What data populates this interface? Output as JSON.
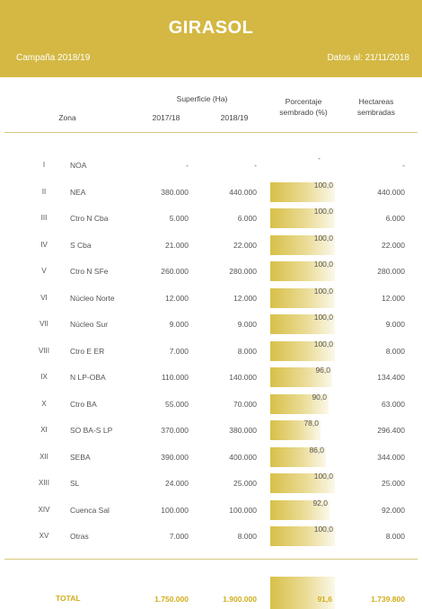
{
  "header": {
    "title": "GIRASOL",
    "campaign": "Campaña 2018/19",
    "date": "Datos al: 21/11/2018"
  },
  "columns": {
    "zona": "Zona",
    "superficie": "Superficie (Ha)",
    "y1": "2017/18",
    "y2": "2018/19",
    "pct_line1": "Porcentaje",
    "pct_line2": "sembrado (%)",
    "hec_line1": "Hectareas",
    "hec_line2": "sembradas"
  },
  "rows": [
    {
      "num": "I",
      "zona": "NOA",
      "s1": "-",
      "s2": "-",
      "pct": "-",
      "pct_value": 0,
      "hec": "-"
    },
    {
      "num": "II",
      "zona": "NEA",
      "s1": "380.000",
      "s2": "440.000",
      "pct": "100,0",
      "pct_value": 100,
      "hec": "440.000"
    },
    {
      "num": "III",
      "zona": "Ctro N Cba",
      "s1": "5.000",
      "s2": "6.000",
      "pct": "100,0",
      "pct_value": 100,
      "hec": "6.000"
    },
    {
      "num": "IV",
      "zona": "S Cba",
      "s1": "21.000",
      "s2": "22.000",
      "pct": "100,0",
      "pct_value": 100,
      "hec": "22.000"
    },
    {
      "num": "V",
      "zona": "Ctro N SFe",
      "s1": "260.000",
      "s2": "280.000",
      "pct": "100,0",
      "pct_value": 100,
      "hec": "280.000"
    },
    {
      "num": "VI",
      "zona": "Núcleo Norte",
      "s1": "12.000",
      "s2": "12.000",
      "pct": "100,0",
      "pct_value": 100,
      "hec": "12.000"
    },
    {
      "num": "VII",
      "zona": "Núcleo Sur",
      "s1": "9.000",
      "s2": "9.000",
      "pct": "100,0",
      "pct_value": 100,
      "hec": "9.000"
    },
    {
      "num": "VIII",
      "zona": "Ctro E ER",
      "s1": "7.000",
      "s2": "8.000",
      "pct": "100,0",
      "pct_value": 100,
      "hec": "8.000"
    },
    {
      "num": "IX",
      "zona": "N LP-OBA",
      "s1": "110.000",
      "s2": "140.000",
      "pct": "96,0",
      "pct_value": 96,
      "hec": "134.400"
    },
    {
      "num": "X",
      "zona": "Ctro BA",
      "s1": "55.000",
      "s2": "70.000",
      "pct": "90,0",
      "pct_value": 90,
      "hec": "63.000"
    },
    {
      "num": "XI",
      "zona": "SO BA-S LP",
      "s1": "370.000",
      "s2": "380.000",
      "pct": "78,0",
      "pct_value": 78,
      "hec": "296.400"
    },
    {
      "num": "XII",
      "zona": "SEBA",
      "s1": "390.000",
      "s2": "400.000",
      "pct": "86,0",
      "pct_value": 86,
      "hec": "344.000"
    },
    {
      "num": "XIII",
      "zona": "SL",
      "s1": "24.000",
      "s2": "25.000",
      "pct": "100,0",
      "pct_value": 100,
      "hec": "25.000"
    },
    {
      "num": "XIV",
      "zona": "Cuenca Sal",
      "s1": "100.000",
      "s2": "100.000",
      "pct": "92,0",
      "pct_value": 92,
      "hec": "92.000"
    },
    {
      "num": "XV",
      "zona": "Otras",
      "s1": "7.000",
      "s2": "8.000",
      "pct": "100,0",
      "pct_value": 100,
      "hec": "8.000"
    }
  ],
  "total": {
    "label": "TOTAL",
    "s1": "1.750.000",
    "s2": "1.900.000",
    "pct": "91,6",
    "hec": "1.739.800"
  },
  "colors": {
    "banner": "#d4b843",
    "total_text": "#d0ad1c"
  }
}
